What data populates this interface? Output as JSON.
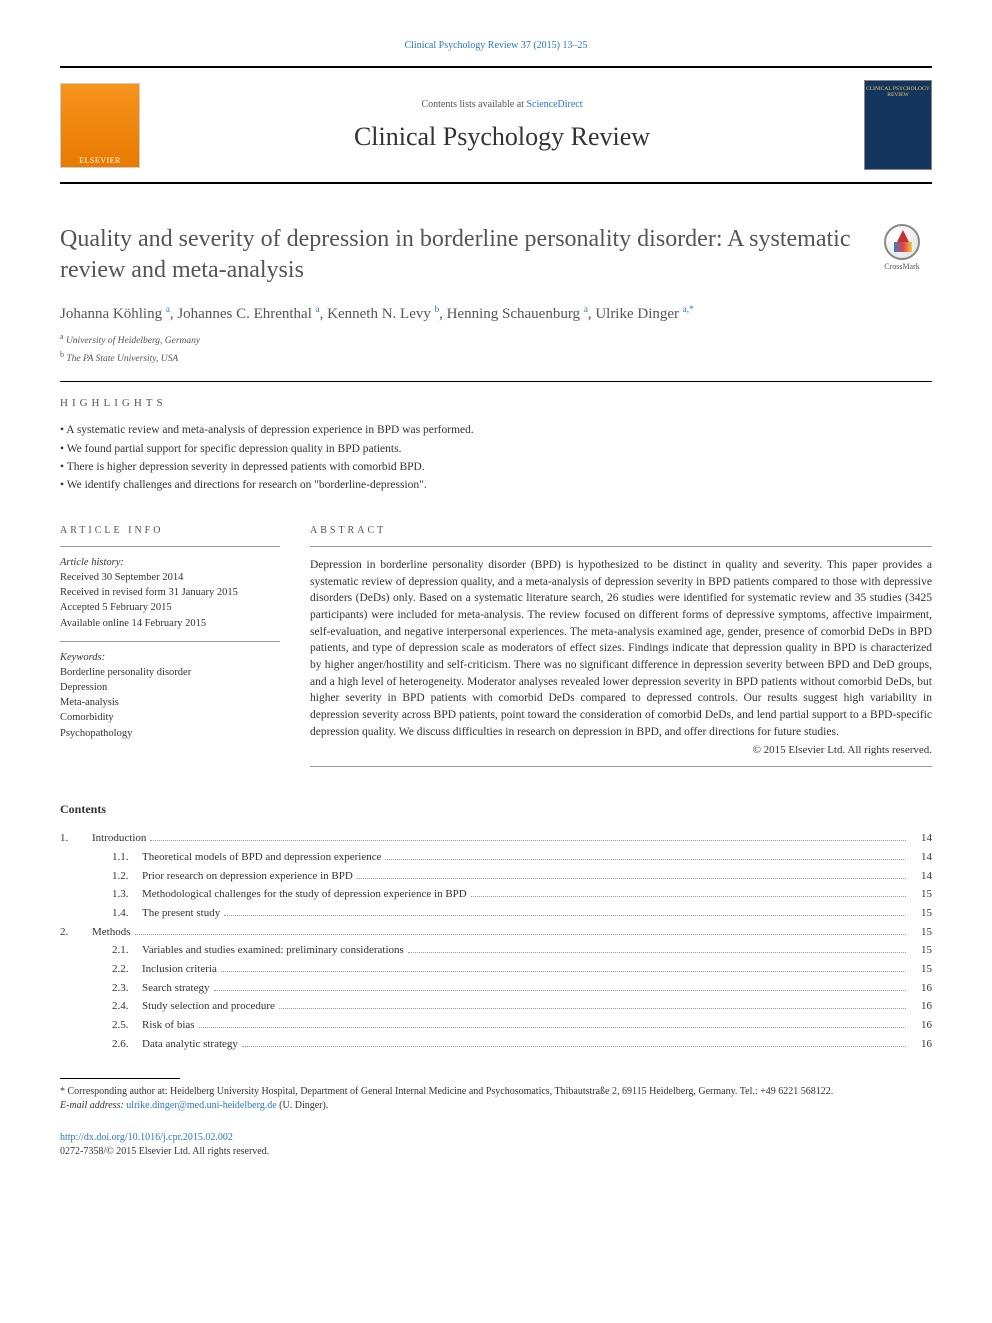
{
  "header": {
    "citation": "Clinical Psychology Review 37 (2015) 13–25",
    "contents_prefix": "Contents lists available at ",
    "contents_link": "ScienceDirect",
    "journal_name": "Clinical Psychology Review",
    "elsevier_label": "ELSEVIER",
    "cover_title": "CLINICAL PSYCHOLOGY REVIEW"
  },
  "article": {
    "title": "Quality and severity of depression in borderline personality disorder: A systematic review and meta-analysis",
    "crossmark_label": "CrossMark",
    "authors_html": "Johanna Köhling <sup>a</sup>, Johannes C. Ehrenthal <sup>a</sup>, Kenneth N. Levy <sup>b</sup>, Henning Schauenburg <sup>a</sup>, Ulrike Dinger <sup>a,*</sup>",
    "affiliations": [
      {
        "sup": "a",
        "text": "University of Heidelberg, Germany"
      },
      {
        "sup": "b",
        "text": "The PA State University, USA"
      }
    ]
  },
  "highlights": {
    "label": "HIGHLIGHTS",
    "items": [
      "A systematic review and meta-analysis of depression experience in BPD was performed.",
      "We found partial support for specific depression quality in BPD patients.",
      "There is higher depression severity in depressed patients with comorbid BPD.",
      "We identify challenges and directions for research on \"borderline-depression\"."
    ]
  },
  "article_info": {
    "label": "ARTICLE INFO",
    "history_label": "Article history:",
    "history": [
      "Received 30 September 2014",
      "Received in revised form 31 January 2015",
      "Accepted 5 February 2015",
      "Available online 14 February 2015"
    ],
    "keywords_label": "Keywords:",
    "keywords": [
      "Borderline personality disorder",
      "Depression",
      "Meta-analysis",
      "Comorbidity",
      "Psychopathology"
    ]
  },
  "abstract": {
    "label": "ABSTRACT",
    "text": "Depression in borderline personality disorder (BPD) is hypothesized to be distinct in quality and severity. This paper provides a systematic review of depression quality, and a meta-analysis of depression severity in BPD patients compared to those with depressive disorders (DeDs) only. Based on a systematic literature search, 26 studies were identified for systematic review and 35 studies (3425 participants) were included for meta-analysis. The review focused on different forms of depressive symptoms, affective impairment, self-evaluation, and negative interpersonal experiences. The meta-analysis examined age, gender, presence of comorbid DeDs in BPD patients, and type of depression scale as moderators of effect sizes. Findings indicate that depression quality in BPD is characterized by higher anger/hostility and self-criticism. There was no significant difference in depression severity between BPD and DeD groups, and a high level of heterogeneity. Moderator analyses revealed lower depression severity in BPD patients without comorbid DeDs, but higher severity in BPD patients with comorbid DeDs compared to depressed controls. Our results suggest high variability in depression severity across BPD patients, point toward the consideration of comorbid DeDs, and lend partial support to a BPD-specific depression quality. We discuss difficulties in research on depression in BPD, and offer directions for future studies.",
    "copyright": "© 2015 Elsevier Ltd. All rights reserved."
  },
  "contents": {
    "heading": "Contents",
    "rows": [
      {
        "level": 1,
        "num": "1.",
        "title": "Introduction",
        "page": "14"
      },
      {
        "level": 2,
        "num": "1.1.",
        "title": "Theoretical models of BPD and depression experience",
        "page": "14"
      },
      {
        "level": 2,
        "num": "1.2.",
        "title": "Prior research on depression experience in BPD",
        "page": "14"
      },
      {
        "level": 2,
        "num": "1.3.",
        "title": "Methodological challenges for the study of depression experience in BPD",
        "page": "15"
      },
      {
        "level": 2,
        "num": "1.4.",
        "title": "The present study",
        "page": "15"
      },
      {
        "level": 1,
        "num": "2.",
        "title": "Methods",
        "page": "15"
      },
      {
        "level": 2,
        "num": "2.1.",
        "title": "Variables and studies examined: preliminary considerations",
        "page": "15"
      },
      {
        "level": 2,
        "num": "2.2.",
        "title": "Inclusion criteria",
        "page": "15"
      },
      {
        "level": 2,
        "num": "2.3.",
        "title": "Search strategy",
        "page": "16"
      },
      {
        "level": 2,
        "num": "2.4.",
        "title": "Study selection and procedure",
        "page": "16"
      },
      {
        "level": 2,
        "num": "2.5.",
        "title": "Risk of bias",
        "page": "16"
      },
      {
        "level": 2,
        "num": "2.6.",
        "title": "Data analytic strategy",
        "page": "16"
      }
    ]
  },
  "footnote": {
    "corr_prefix": "* Corresponding author at: Heidelberg University Hospital, Department of General Internal Medicine and Psychosomatics, Thibautstraße 2, 69115 Heidelberg, Germany. Tel.: +49 6221 568122.",
    "email_label": "E-mail address: ",
    "email": "ulrike.dinger@med.uni-heidelberg.de",
    "email_name": " (U. Dinger)."
  },
  "footer": {
    "doi": "http://dx.doi.org/10.1016/j.cpr.2015.02.002",
    "issn_line": "0272-7358/© 2015 Elsevier Ltd. All rights reserved."
  }
}
